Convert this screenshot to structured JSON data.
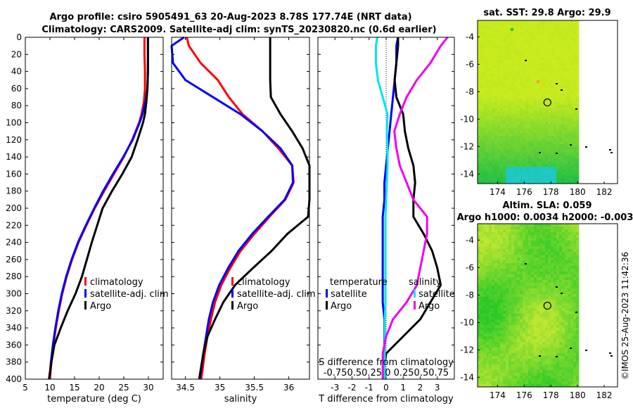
{
  "title": {
    "line1": "Argo profile: csiro 5905491_63 20-Aug-2023 8.78S 177.74E (NRT data)",
    "line2": "Climatology: CARS2009. Satellite-adj clim: synTS_20230820.nc (0.6d earlier)"
  },
  "colors": {
    "clim": "#ff0000",
    "sat": "#0000ff",
    "argo": "#000000",
    "cyan": "#00e5ee",
    "magenta": "#ee00ee"
  },
  "chart_data": [
    {
      "type": "line",
      "xlabel": "temperature (deg C)",
      "ylabel": "",
      "xlim": [
        5,
        33
      ],
      "ylim": [
        400,
        0
      ],
      "xticks": [
        "5",
        "10",
        "15",
        "20",
        "25",
        "30"
      ],
      "yticks": [
        "0",
        "20",
        "40",
        "60",
        "80",
        "100",
        "120",
        "140",
        "160",
        "180",
        "200",
        "220",
        "240",
        "260",
        "280",
        "300",
        "320",
        "340",
        "360",
        "380",
        "400"
      ],
      "legend": [
        "climatology",
        "satellite-adj. clim",
        "Argo"
      ],
      "depth": [
        0,
        20,
        40,
        60,
        75,
        90,
        100,
        120,
        140,
        160,
        180,
        200,
        220,
        240,
        260,
        280,
        300,
        320,
        340,
        360,
        380,
        400
      ],
      "series": [
        {
          "name": "climatology",
          "values": [
            29.2,
            29.2,
            29.3,
            29.3,
            29.1,
            28.6,
            28.1,
            26.7,
            25.0,
            23.0,
            21.0,
            19.1,
            17.4,
            15.8,
            14.5,
            13.4,
            12.5,
            11.8,
            11.2,
            10.7,
            10.3,
            10.0
          ]
        },
        {
          "name": "satellite-adj. clim",
          "values": [
            29.9,
            29.9,
            29.9,
            29.8,
            29.4,
            28.8,
            28.2,
            26.8,
            24.9,
            22.8,
            20.8,
            19.0,
            17.3,
            15.7,
            14.4,
            13.3,
            12.4,
            11.7,
            11.1,
            10.6,
            10.2,
            9.9
          ]
        },
        {
          "name": "Argo",
          "values": [
            29.9,
            29.9,
            29.9,
            29.8,
            29.6,
            29.3,
            28.9,
            27.8,
            26.6,
            24.7,
            22.6,
            20.7,
            19.6,
            18.5,
            17.5,
            16.5,
            15.2,
            13.6,
            12.2,
            10.9,
            10.3,
            9.8
          ]
        }
      ]
    },
    {
      "type": "line",
      "xlabel": "salinity",
      "ylabel": "",
      "xlim": [
        34.3,
        36.3
      ],
      "ylim": [
        400,
        0
      ],
      "xticks": [
        "34.5",
        "35",
        "35.5",
        "36"
      ],
      "legend": [
        "climatology",
        "satellite-adj. clim",
        "Argo"
      ],
      "depth": [
        0,
        10,
        30,
        50,
        70,
        90,
        110,
        130,
        150,
        170,
        190,
        210,
        230,
        250,
        270,
        290,
        310,
        330,
        350,
        370,
        400
      ],
      "series": [
        {
          "name": "climatology",
          "values": [
            34.52,
            34.55,
            34.72,
            34.97,
            35.13,
            35.33,
            35.62,
            35.85,
            36.05,
            36.07,
            35.95,
            35.72,
            35.5,
            35.3,
            35.15,
            35.02,
            34.93,
            34.87,
            34.82,
            34.78,
            34.73
          ]
        },
        {
          "name": "satellite-adj. clim",
          "values": [
            34.48,
            34.3,
            34.32,
            34.5,
            34.9,
            35.3,
            35.62,
            35.88,
            36.05,
            36.06,
            35.94,
            35.7,
            35.47,
            35.27,
            35.12,
            34.99,
            34.9,
            34.84,
            34.8,
            34.76,
            34.71
          ]
        },
        {
          "name": "Argo",
          "values": [
            35.73,
            35.73,
            35.73,
            35.73,
            35.74,
            35.88,
            36.05,
            36.2,
            36.3,
            36.32,
            36.35,
            36.28,
            35.98,
            35.75,
            35.48,
            35.22,
            35.05,
            34.93,
            34.82,
            34.76,
            34.7
          ]
        }
      ]
    },
    {
      "type": "line",
      "xlabel": "T difference from climatology",
      "x2label": "S difference from climatology",
      "xlim": [
        -4,
        4
      ],
      "x2lim": [
        -1,
        1
      ],
      "ylim": [
        400,
        0
      ],
      "xticks": [
        "-3",
        "-2",
        "-1",
        "0",
        "1",
        "2",
        "3"
      ],
      "x2ticks": "-0.750.50.25 0 0.250.50.75",
      "legend_titles": [
        "temperature",
        "salinity"
      ],
      "legend": [
        "satellite",
        "Argo",
        "satellite",
        "Argo"
      ],
      "depth": [
        0,
        10,
        30,
        50,
        70,
        90,
        110,
        130,
        150,
        170,
        190,
        210,
        230,
        250,
        270,
        290,
        310,
        330,
        350,
        370,
        400
      ],
      "series": [
        {
          "name": "T satellite",
          "axis": "T",
          "values": [
            0.7,
            0.6,
            0.6,
            0.5,
            0.4,
            0.3,
            0.2,
            0.1,
            0.0,
            -0.1,
            -0.1,
            -0.2,
            -0.2,
            -0.2,
            -0.2,
            -0.2,
            -0.2,
            -0.1,
            -0.1,
            -0.1,
            -0.1
          ]
        },
        {
          "name": "T Argo",
          "axis": "T",
          "values": [
            0.7,
            0.7,
            0.6,
            0.5,
            0.6,
            1.0,
            1.1,
            1.3,
            1.6,
            1.7,
            1.6,
            1.6,
            2.2,
            2.7,
            3.0,
            3.2,
            2.6,
            2.0,
            1.0,
            0.0,
            -0.2
          ]
        },
        {
          "name": "S satellite",
          "axis": "S",
          "values": [
            -0.13,
            -0.15,
            -0.15,
            -0.12,
            -0.05,
            0.02,
            0.01,
            0.02,
            0.02,
            0.01,
            0.0,
            -0.01,
            -0.01,
            -0.01,
            -0.01,
            -0.01,
            -0.01,
            -0.02,
            -0.02,
            -0.02,
            -0.02
          ]
        },
        {
          "name": "S Argo",
          "axis": "S",
          "values": [
            0.9,
            0.8,
            0.65,
            0.45,
            0.3,
            0.2,
            0.12,
            0.15,
            0.2,
            0.3,
            0.4,
            0.6,
            0.6,
            0.55,
            0.5,
            0.45,
            0.3,
            0.1,
            0.0,
            -0.05,
            -0.05
          ]
        }
      ]
    },
    {
      "type": "heatmap",
      "title": "sat. SST: 29.8 Argo: 29.9",
      "xticks": [
        "174",
        "176",
        "178",
        "180",
        "182"
      ],
      "yticks": [
        "-4",
        "-6",
        "-8",
        "-10",
        "-12",
        "-14"
      ],
      "xlim": [
        172.5,
        183
      ],
      "ylim": [
        -14.7,
        -2.8
      ],
      "argo_position": [
        177.74,
        -8.78
      ]
    },
    {
      "type": "heatmap",
      "title": "Altim. SLA: 0.059",
      "subtitle": "Argo h1000: 0.0034 h2000: -0.003",
      "xticks": [
        "174",
        "176",
        "178",
        "180",
        "182"
      ],
      "yticks": [
        "-4",
        "-6",
        "-8",
        "-10",
        "-12",
        "-14"
      ],
      "xlim": [
        172.5,
        183
      ],
      "ylim": [
        -14.7,
        -2.8
      ],
      "argo_position": [
        177.74,
        -8.78
      ]
    }
  ],
  "stamp": "©IMOS 25-Aug-2023 11:42:36"
}
